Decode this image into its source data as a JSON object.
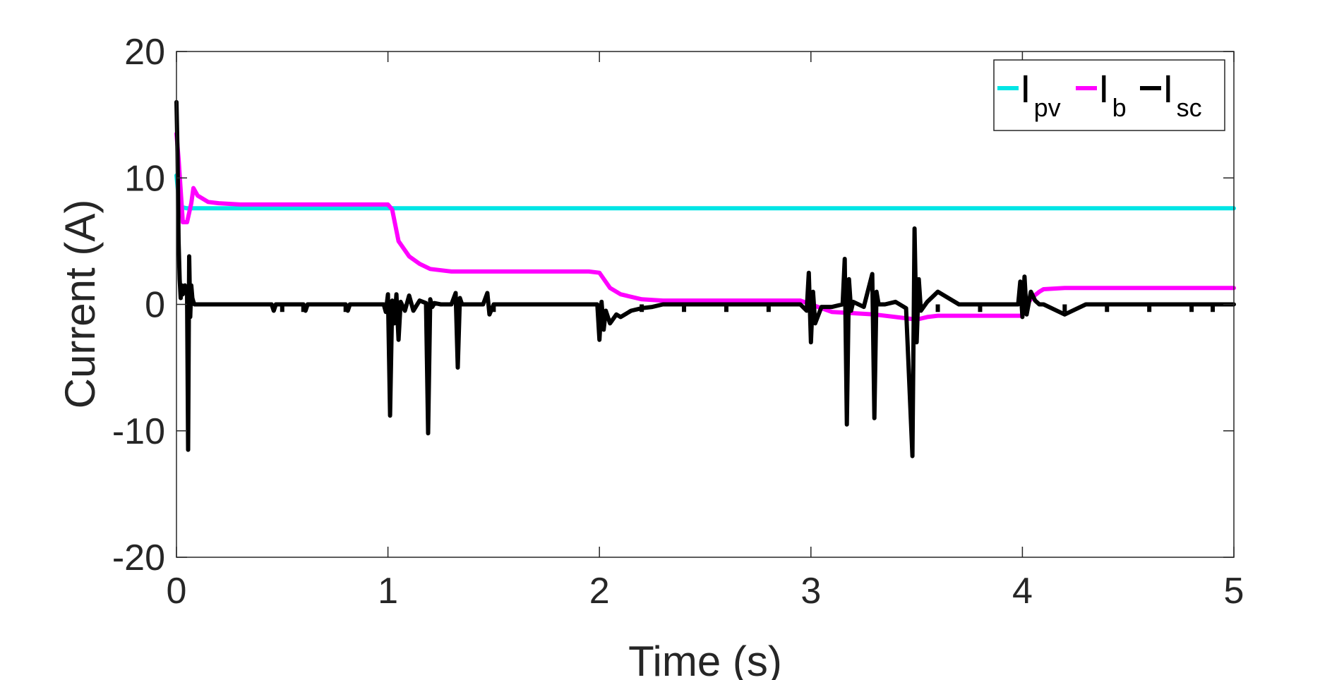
{
  "chart_data": {
    "type": "line",
    "xlabel": "Time (s)",
    "ylabel": "Current (A)",
    "xlim": [
      0,
      5
    ],
    "ylim": [
      -20,
      20
    ],
    "x_ticks": [
      "0",
      "1",
      "2",
      "3",
      "4",
      "5"
    ],
    "y_ticks": [
      "20",
      "10",
      "0",
      "-10",
      "-20"
    ],
    "grid": false,
    "legend_position": "top-right",
    "series": [
      {
        "name": "I_pv",
        "label_main": "I",
        "label_sub": "pv",
        "color": "#00e5e5",
        "x": [
          0,
          0.01,
          0.02,
          0.05,
          0.1,
          0.5,
          1.0,
          1.5,
          2.0,
          2.5,
          3.0,
          3.5,
          4.0,
          4.5,
          5.0
        ],
        "y": [
          10.2,
          8.5,
          7.7,
          7.6,
          7.6,
          7.6,
          7.6,
          7.6,
          7.6,
          7.6,
          7.6,
          7.6,
          7.6,
          7.6,
          7.6
        ]
      },
      {
        "name": "I_b",
        "label_main": "I",
        "label_sub": "b",
        "color": "#ff00ff",
        "x": [
          0,
          0.01,
          0.02,
          0.03,
          0.05,
          0.07,
          0.08,
          0.1,
          0.15,
          0.2,
          0.3,
          0.5,
          0.7,
          0.9,
          1.0,
          1.02,
          1.05,
          1.1,
          1.15,
          1.2,
          1.3,
          1.5,
          1.7,
          1.95,
          2.0,
          2.05,
          2.1,
          2.2,
          2.3,
          2.5,
          2.8,
          2.95,
          3.0,
          3.1,
          3.2,
          3.3,
          3.4,
          3.5,
          3.55,
          3.6,
          3.8,
          4.0,
          4.02,
          4.05,
          4.08,
          4.1,
          4.2,
          4.5,
          4.8,
          5.0
        ],
        "y": [
          13.5,
          11.5,
          9.0,
          6.5,
          6.5,
          8.0,
          9.2,
          8.6,
          8.1,
          8.0,
          7.9,
          7.9,
          7.9,
          7.9,
          7.9,
          7.5,
          5.0,
          3.8,
          3.2,
          2.8,
          2.6,
          2.6,
          2.6,
          2.6,
          2.5,
          1.3,
          0.8,
          0.4,
          0.3,
          0.3,
          0.3,
          0.3,
          0.0,
          -0.6,
          -0.7,
          -0.8,
          -1.0,
          -1.2,
          -1.0,
          -0.9,
          -0.9,
          -0.9,
          0.0,
          0.6,
          1.0,
          1.2,
          1.3,
          1.3,
          1.3,
          1.3
        ]
      },
      {
        "name": "I_sc",
        "label_main": "I",
        "label_sub": "sc",
        "color": "#000000",
        "x": [
          0,
          0.005,
          0.01,
          0.015,
          0.02,
          0.025,
          0.03,
          0.04,
          0.05,
          0.055,
          0.06,
          0.065,
          0.07,
          0.075,
          0.08,
          0.085,
          0.09,
          0.1,
          0.2,
          0.45,
          0.46,
          0.47,
          0.6,
          0.61,
          0.62,
          0.8,
          0.81,
          0.82,
          0.98,
          0.99,
          1.0,
          1.01,
          1.02,
          1.03,
          1.04,
          1.05,
          1.06,
          1.08,
          1.1,
          1.12,
          1.15,
          1.18,
          1.19,
          1.2,
          1.21,
          1.22,
          1.25,
          1.3,
          1.32,
          1.33,
          1.34,
          1.35,
          1.45,
          1.47,
          1.48,
          1.5,
          1.99,
          2.0,
          2.01,
          2.02,
          2.03,
          2.05,
          2.08,
          2.1,
          2.15,
          2.2,
          2.25,
          2.3,
          2.5,
          2.8,
          2.95,
          2.98,
          2.99,
          3.0,
          3.01,
          3.02,
          3.05,
          3.1,
          3.15,
          3.16,
          3.17,
          3.18,
          3.19,
          3.2,
          3.25,
          3.29,
          3.3,
          3.31,
          3.32,
          3.35,
          3.4,
          3.45,
          3.48,
          3.49,
          3.5,
          3.51,
          3.52,
          3.55,
          3.6,
          3.7,
          3.8,
          3.9,
          3.95,
          3.98,
          3.99,
          4.0,
          4.01,
          4.02,
          4.04,
          4.06,
          4.08,
          4.1,
          4.2,
          4.3,
          4.5,
          4.7,
          4.9,
          5.0
        ],
        "y": [
          16.0,
          12.0,
          5.0,
          2.0,
          0.5,
          1.5,
          0.8,
          1.5,
          1.0,
          -11.5,
          3.8,
          -1.0,
          1.5,
          0.5,
          0.2,
          0.0,
          0.0,
          0.0,
          0.0,
          0.0,
          -0.5,
          0.0,
          0.0,
          -0.5,
          0.0,
          0.0,
          -0.5,
          0.0,
          0.0,
          -0.6,
          0.8,
          -8.8,
          0.3,
          -1.5,
          0.8,
          -2.8,
          0.2,
          -0.5,
          0.7,
          -0.5,
          0.3,
          0.1,
          -10.2,
          0.4,
          -0.2,
          0.1,
          0.0,
          0.0,
          0.9,
          -5.0,
          0.5,
          0.0,
          0.0,
          0.9,
          -0.8,
          0.0,
          0.0,
          -2.8,
          0.2,
          -2.0,
          -0.5,
          -1.5,
          -0.8,
          -1.0,
          -0.5,
          -0.3,
          -0.2,
          0.0,
          0.0,
          0.0,
          0.0,
          -0.5,
          2.5,
          -3.0,
          1.0,
          -1.5,
          -0.2,
          -0.2,
          0.0,
          3.6,
          -9.5,
          2.0,
          -0.5,
          0.2,
          -0.2,
          2.4,
          -9.0,
          1.0,
          0.0,
          0.0,
          0.2,
          -0.3,
          -12.0,
          6.0,
          -3.0,
          2.0,
          -0.5,
          0.2,
          1.0,
          0.0,
          0.0,
          0.0,
          0.0,
          0.0,
          1.8,
          -1.0,
          2.2,
          -0.8,
          1.0,
          0.3,
          0.0,
          0.0,
          -0.8,
          0.0,
          0.0,
          0.0,
          0.0,
          0.0
        ]
      }
    ],
    "spike_markers": {
      "I_sc_small_dips_x": [
        0.5,
        0.6,
        0.8,
        1.5,
        2.2,
        2.4,
        2.6,
        2.8,
        3.6,
        3.8,
        4.2,
        4.4,
        4.6,
        4.8,
        4.9
      ]
    }
  }
}
